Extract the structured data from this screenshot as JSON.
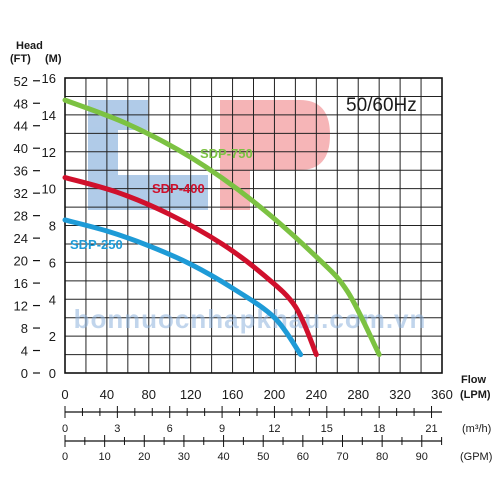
{
  "chart_data": {
    "type": "line",
    "title": "50/60Hz",
    "y_axis": {
      "label": "Head",
      "unit_ft": "(FT)",
      "unit_m": "(M)",
      "ticks_m": [
        "0",
        "2",
        "4",
        "6",
        "8",
        "10",
        "12",
        "14",
        "16"
      ],
      "ticks_ft": [
        "0",
        "4",
        "8",
        "12",
        "16",
        "20",
        "24",
        "28",
        "32",
        "36",
        "40",
        "44",
        "48",
        "52"
      ],
      "ylim_m": [
        0,
        16
      ]
    },
    "x_axis": {
      "label": "Flow",
      "unit": "(LPM)",
      "ticks_lpm": [
        "0",
        "40",
        "80",
        "120",
        "160",
        "200",
        "240",
        "280",
        "320",
        "360"
      ],
      "xlim_lpm": [
        0,
        360
      ],
      "secondary": [
        {
          "unit": "(m³/h)",
          "ticks": [
            "0",
            "3",
            "6",
            "9",
            "12",
            "15",
            "18",
            "21"
          ],
          "max": 21.6
        },
        {
          "unit": "(GPM)",
          "ticks": [
            "0",
            "10",
            "20",
            "30",
            "40",
            "50",
            "60",
            "70",
            "80",
            "90"
          ],
          "max": 95.1
        }
      ]
    },
    "grid": true,
    "series": [
      {
        "name": "SDP-750",
        "color": "#7cc242",
        "x": [
          0,
          60,
          120,
          180,
          240,
          270,
          300
        ],
        "y": [
          14.8,
          13.5,
          11.7,
          9.3,
          6.3,
          4.4,
          1.0
        ]
      },
      {
        "name": "SDP-400",
        "color": "#d0102c",
        "x": [
          0,
          50,
          100,
          150,
          190,
          220,
          240
        ],
        "y": [
          10.6,
          9.8,
          8.6,
          7.0,
          5.3,
          3.6,
          1.0
        ]
      },
      {
        "name": "SDP-250",
        "color": "#1e9bd7",
        "x": [
          0,
          40,
          80,
          120,
          160,
          200,
          225
        ],
        "y": [
          8.3,
          7.7,
          6.9,
          5.9,
          4.6,
          3.0,
          1.0
        ]
      }
    ]
  },
  "watermark": {
    "text": "bonnuocnhapkhau.com.vn",
    "letter_b_color": "#3d7ec6",
    "letter_p_color": "#e8454a"
  }
}
